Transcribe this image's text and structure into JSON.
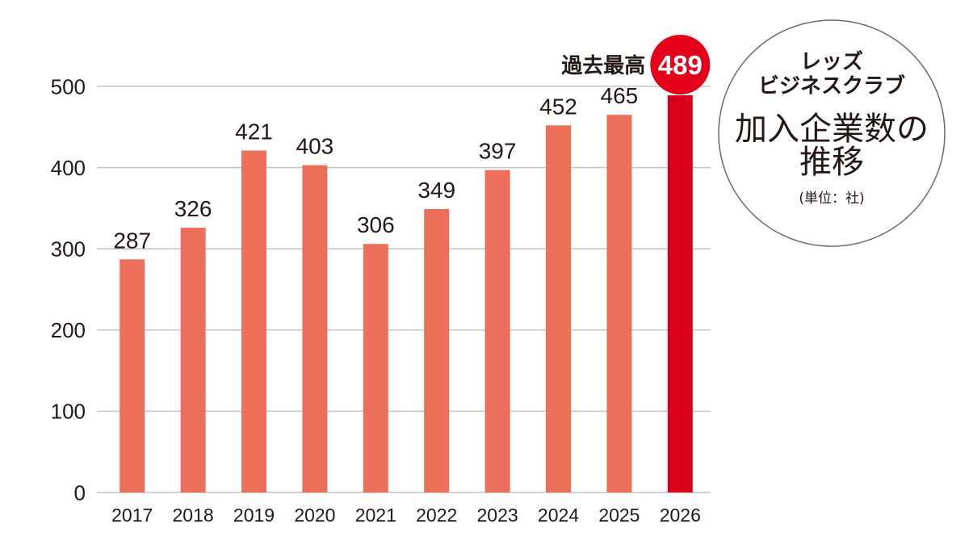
{
  "chart_data": {
    "type": "bar",
    "title": {
      "brand": [
        "レッズ",
        "ビジネスクラブ"
      ],
      "main": [
        "加入企業数の",
        "推移"
      ]
    },
    "unit": "(単位：社)",
    "categories": [
      "2017",
      "2018",
      "2019",
      "2020",
      "2021",
      "2022",
      "2023",
      "2024",
      "2025",
      "2026"
    ],
    "values": [
      287,
      326,
      421,
      403,
      306,
      349,
      397,
      452,
      465,
      489
    ],
    "yticks": [
      0,
      100,
      200,
      300,
      400,
      500
    ],
    "ylim": [
      0,
      500
    ],
    "grid": true,
    "highlight_index": 9,
    "annotation": {
      "text": "過去最高",
      "index": 9
    },
    "colors": {
      "bar": "#ec6f5a",
      "highlight": "#d9001b",
      "badge": "#e3001a",
      "grid": "#c4c4c4",
      "text": "#231815"
    }
  }
}
